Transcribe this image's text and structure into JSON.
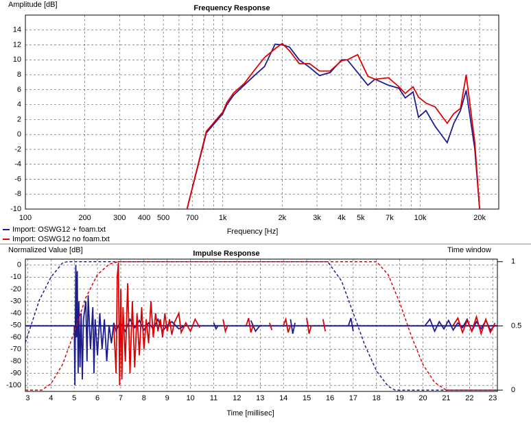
{
  "chart_data": [
    {
      "type": "line",
      "title": "Frequency Response",
      "y_label": "Amplitude [dB]",
      "x_label": "Frequency [Hz]",
      "xscale": "log",
      "xlim": [
        100,
        25000
      ],
      "ylim": [
        -10,
        16
      ],
      "xticks": [
        100,
        200,
        300,
        400,
        500,
        700,
        {
          "value": 1000,
          "label": "1k"
        },
        {
          "value": 2000,
          "label": "2k"
        },
        {
          "value": 3000,
          "label": "3k"
        },
        {
          "value": 4000,
          "label": "4k"
        },
        {
          "value": 5000,
          "label": "5k"
        },
        {
          "value": 7000,
          "label": "7k"
        },
        {
          "value": 10000,
          "label": "10k"
        },
        {
          "value": 20000,
          "label": "20k"
        }
      ],
      "xminor": [
        600,
        800,
        900,
        6000,
        8000,
        9000
      ],
      "yticks": [
        -10,
        -8,
        -6,
        -4,
        -2,
        0,
        2,
        4,
        6,
        8,
        10,
        12,
        14
      ],
      "grid": true,
      "x": [
        659,
        825,
        1000,
        1050,
        1137,
        1282,
        1446,
        1626,
        1841,
        2000,
        2180,
        2440,
        2750,
        3090,
        3500,
        4000,
        4270,
        4820,
        5430,
        5900,
        6900,
        7800,
        8400,
        9200,
        9800,
        10700,
        11900,
        13700,
        14800,
        16000,
        17100,
        18900,
        20000
      ],
      "series": [
        {
          "name": "Import: OSWG12 + foam.txt",
          "color": "#1c1c8e",
          "values": [
            -10,
            0.2,
            2.8,
            4,
            5.3,
            6.6,
            7.9,
            9.1,
            12.1,
            12,
            11.7,
            10,
            9,
            7.9,
            8.3,
            10,
            10,
            8.3,
            6.6,
            7.4,
            6.6,
            6.2,
            4.9,
            5.7,
            2.3,
            3.2,
            1.1,
            -1.1,
            1.5,
            3.2,
            5.9,
            -1.9,
            -10
          ]
        },
        {
          "name": "Import: OSWG12 no foam.txt",
          "color": "#e00000",
          "values": [
            -10,
            0.4,
            3,
            4.3,
            5.6,
            6.8,
            8.6,
            10.3,
            11.5,
            12.2,
            11.2,
            9.5,
            9.5,
            8.5,
            8.5,
            9.9,
            10,
            10.7,
            7.8,
            7.4,
            7.6,
            6.4,
            5.5,
            6.4,
            5,
            4.2,
            3.7,
            1.5,
            2.8,
            3.5,
            8,
            -1,
            -10
          ]
        }
      ]
    },
    {
      "type": "line",
      "title": "Impulse Response",
      "y_label": "Normalized Value [dB]",
      "y2_label": "Time window",
      "x_label": "Time [millisec]",
      "xlim": [
        2.9,
        23.2
      ],
      "ylim": [
        -105,
        5
      ],
      "y2lim": [
        -0.01,
        1.02
      ],
      "xticks": [
        3,
        4,
        5,
        6,
        7,
        8,
        9,
        10,
        11,
        12,
        13,
        14,
        15,
        16,
        17,
        18,
        19,
        20,
        21,
        22,
        23
      ],
      "yticks": [
        -100,
        -90,
        -80,
        -70,
        -60,
        -50,
        -40,
        -30,
        -20,
        -10,
        0
      ],
      "y2ticks": [
        0,
        0.5,
        1
      ],
      "reference_y2": 0.5,
      "grid": true,
      "series": [
        {
          "color": "#1c1c8e",
          "x": [
            5.0,
            5.03,
            5.07,
            5.1,
            5.13,
            5.17,
            5.2,
            5.25,
            5.3,
            5.35,
            5.4,
            5.5,
            5.55,
            5.6,
            5.7,
            5.8,
            5.85,
            5.9,
            6.0,
            6.1,
            6.2,
            6.3,
            6.4,
            6.5,
            6.6,
            6.7,
            6.8,
            6.9,
            7.0,
            7.2,
            7.4,
            7.6,
            7.8,
            8.0,
            8.2,
            8.4,
            8.6,
            8.8,
            9.0,
            9.2,
            9.5,
            9.8,
            10.5,
            11.0,
            11.1,
            11.2,
            12.0,
            12.6,
            12.8,
            13.0,
            14.0,
            14.3,
            14.4,
            14.5,
            16.0,
            16.8,
            16.9,
            17.0,
            19.0,
            20.1,
            20.3,
            20.5,
            20.7,
            20.9,
            21.1,
            21.3,
            21.5,
            21.7,
            21.9,
            22.1,
            22.3,
            22.5,
            22.7,
            22.9,
            23.1
          ],
          "values": [
            -50,
            -100,
            0,
            -60,
            -5,
            -90,
            -30,
            -85,
            -40,
            -95,
            -45,
            -30,
            -80,
            -25,
            -70,
            -35,
            -90,
            -45,
            -75,
            -40,
            -70,
            -45,
            -80,
            -50,
            -65,
            -48,
            -55,
            -50,
            -48,
            -55,
            -45,
            -52,
            -46,
            -54,
            -48,
            -53,
            -45,
            -55,
            -50,
            -47,
            -53,
            -50,
            null,
            -48,
            -53,
            -50,
            null,
            -46,
            -55,
            -50,
            null,
            -45,
            -57,
            -48,
            null,
            -50,
            -44,
            -55,
            null,
            -50,
            -45,
            -55,
            -47,
            -53,
            -46,
            -54,
            -48,
            -52,
            -45,
            -55,
            -47,
            -53,
            -46,
            -54,
            -50
          ]
        },
        {
          "color": "#e00000",
          "x": [
            6.7,
            6.8,
            6.85,
            6.9,
            6.95,
            7.0,
            7.05,
            7.1,
            7.2,
            7.3,
            7.4,
            7.5,
            7.6,
            7.7,
            7.8,
            7.9,
            8.0,
            8.1,
            8.2,
            8.3,
            8.4,
            8.5,
            8.6,
            8.7,
            8.8,
            8.9,
            9.0,
            9.1,
            9.2,
            9.3,
            9.5,
            9.6,
            9.8,
            10.0,
            10.2,
            10.4,
            11.0,
            11.4,
            11.5,
            11.6,
            12.0,
            12.4,
            12.5,
            12.6,
            12.7,
            13.0,
            13.4,
            13.5,
            13.8,
            14.0,
            14.1,
            14.2,
            14.3,
            14.7,
            15.0,
            15.1,
            15.2,
            15.5,
            15.7,
            15.8,
            20.0,
            21.3,
            21.5,
            21.7,
            21.9,
            22.1,
            22.3,
            22.5,
            22.7,
            22.9,
            23.1
          ],
          "values": [
            -50,
            -90,
            -10,
            2,
            -100,
            -20,
            -95,
            -35,
            -80,
            -15,
            -90,
            -30,
            -85,
            -40,
            -75,
            -35,
            -70,
            -45,
            -65,
            -30,
            -60,
            -40,
            -55,
            -45,
            -60,
            -40,
            -55,
            -45,
            -58,
            -48,
            -40,
            -56,
            -48,
            -55,
            -45,
            -52,
            null,
            -45,
            -55,
            -50,
            null,
            -50,
            -44,
            -56,
            -50,
            null,
            -48,
            -54,
            null,
            -50,
            -45,
            -56,
            -50,
            null,
            -44,
            -57,
            -50,
            null,
            -45,
            -55,
            null,
            -50,
            -44,
            -56,
            -46,
            -55,
            -43,
            -57,
            -45,
            -56,
            -48
          ]
        },
        {
          "color": "#1c1c8e",
          "axis": "y2",
          "dash": true,
          "x": [
            2.9,
            3.5,
            4.0,
            4.5,
            4.7,
            15.9,
            16.5,
            17.0,
            17.5,
            18.0,
            18.5,
            18.8,
            23.2
          ],
          "values": [
            0.37,
            0.7,
            0.88,
            0.99,
            1,
            1,
            0.85,
            0.6,
            0.35,
            0.15,
            0.03,
            0,
            0
          ]
        },
        {
          "color": "#e00000",
          "axis": "y2",
          "dash": true,
          "x": [
            2.9,
            3.6,
            4.0,
            4.5,
            5.0,
            5.5,
            6.0,
            6.5,
            6.9,
            18.0,
            18.5,
            19.0,
            19.5,
            20.0,
            20.5,
            21.0,
            23.2
          ],
          "values": [
            0,
            0,
            0.05,
            0.2,
            0.45,
            0.72,
            0.9,
            0.98,
            1,
            1,
            0.9,
            0.68,
            0.42,
            0.2,
            0.06,
            0,
            0
          ]
        }
      ]
    }
  ]
}
